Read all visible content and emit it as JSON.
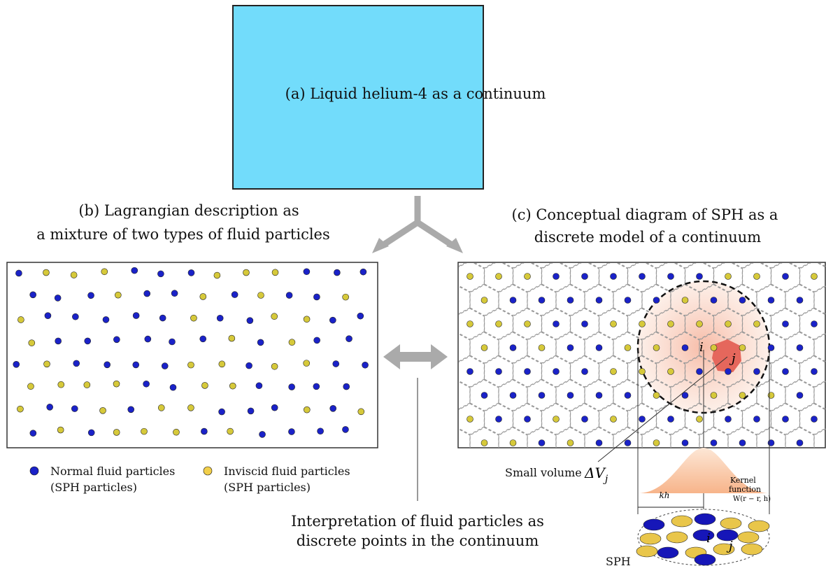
{
  "panel_a": {
    "label": "(a) Liquid helium-4 as a continuum"
  },
  "panel_b": {
    "title": [
      "(b) Lagrangian description as",
      "a mixture of two types of fluid particles"
    ]
  },
  "panel_c": {
    "title": [
      "(c) Conceptual diagram of SPH as a",
      "discrete model of a continuum"
    ],
    "particle_i": "i",
    "particle_j": "j",
    "small_volume": "Small volume",
    "delta_v": "ΔV",
    "delta_v_sub": "j",
    "kh": "kh",
    "kernel": [
      "Kernel",
      "function",
      "W(r − r, h)"
    ],
    "sph": "SPH",
    "disk_i": "i",
    "disk_j": "j"
  },
  "legend": {
    "normal": [
      "Normal fluid particles",
      "(SPH particles)"
    ],
    "inviscid": [
      "Inviscid fluid particles",
      "(SPH particles)"
    ]
  },
  "interpretation": [
    "Interpretation of fluid particles as",
    "discrete points in the continuum"
  ]
}
